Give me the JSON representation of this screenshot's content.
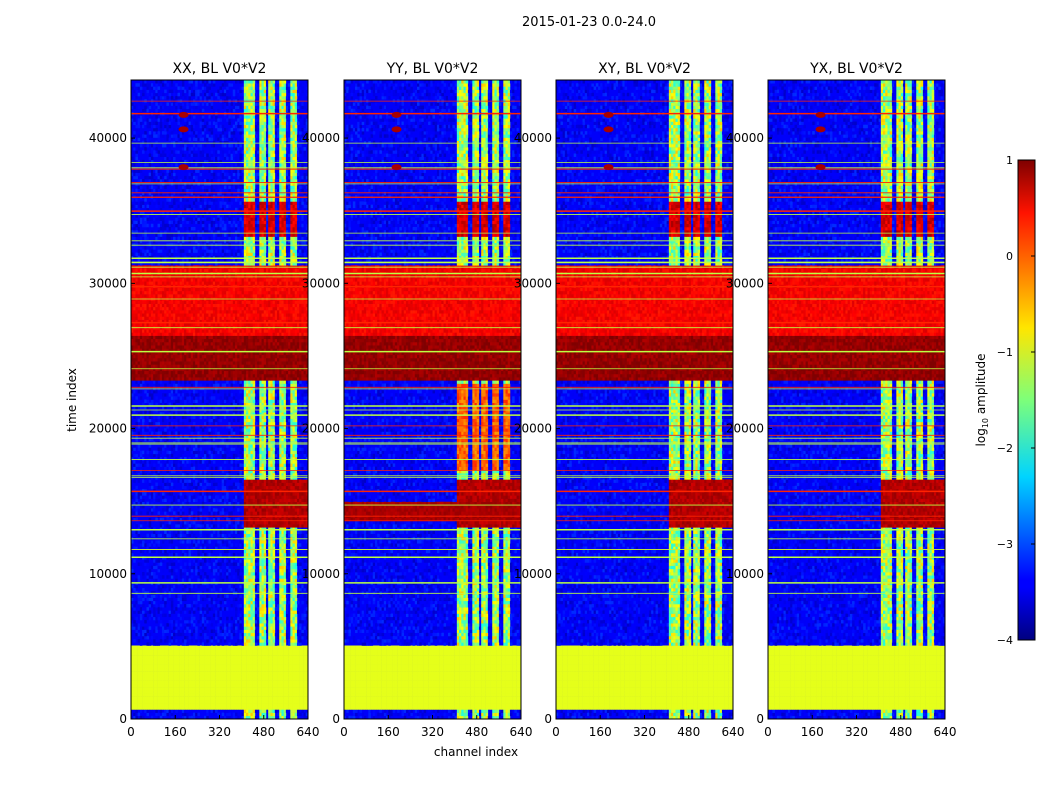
{
  "figure": {
    "suptitle": "2015-01-23 0.0-24.0",
    "xlabel": "channel index",
    "ylabel": "time index"
  },
  "chart_data": {
    "type": "heatmap",
    "panels": [
      {
        "title": "XX, BL V0*V2",
        "yy_extra": false
      },
      {
        "title": "YY, BL V0*V2",
        "yy_extra": true
      },
      {
        "title": "XY, BL V0*V2",
        "yy_extra": false
      },
      {
        "title": "YX, BL V0*V2",
        "yy_extra": false
      }
    ],
    "xlim": [
      0,
      640
    ],
    "ylim": [
      0,
      44000
    ],
    "xticks": [
      0,
      160,
      320,
      480,
      640
    ],
    "yticks": [
      0,
      10000,
      20000,
      30000,
      40000
    ],
    "xtick_labels": [
      "0",
      "160",
      "320",
      "480",
      "640"
    ],
    "ytick_labels": [
      "0",
      "10000",
      "20000",
      "30000",
      "40000"
    ],
    "colorbar": {
      "label": "log10 amplitude",
      "label_main": "log",
      "label_sub": "10",
      "label_rest": " amplitude",
      "range": [
        -4,
        1
      ],
      "ticks": [
        1,
        0,
        -1,
        -2,
        -3,
        -4
      ],
      "tick_labels": [
        "1",
        "0",
        "−1",
        "−2",
        "−3",
        "−4"
      ],
      "colormap": "jet"
    },
    "structure": {
      "background_level": -3.4,
      "rfi_band_channels": [
        [
          405,
          445
        ],
        [
          460,
          480
        ],
        [
          490,
          515
        ],
        [
          530,
          555
        ],
        [
          575,
          595
        ]
      ],
      "rfi_band_level": -1.3,
      "flagged_block": {
        "time": [
          600,
          5000
        ],
        "level": -1.0
      },
      "saturated_blocks": [
        {
          "time": [
            26300,
            31200
          ],
          "level": 0.4
        },
        {
          "time": [
            23200,
            26300
          ],
          "level": 0.9
        }
      ],
      "hot_channel": 190,
      "hot_channel_times": [
        38000,
        40600,
        41600
      ]
    }
  }
}
